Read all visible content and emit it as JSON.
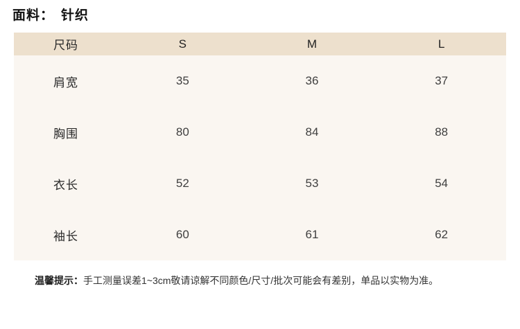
{
  "fabric": {
    "label": "面料：",
    "value": "针织"
  },
  "size_table": {
    "columns": [
      "尺码",
      "S",
      "M",
      "L"
    ],
    "rows": [
      {
        "label": "肩宽",
        "values": [
          "35",
          "36",
          "37"
        ]
      },
      {
        "label": "胸围",
        "values": [
          "80",
          "84",
          "88"
        ]
      },
      {
        "label": "衣长",
        "values": [
          "52",
          "53",
          "54"
        ]
      },
      {
        "label": "袖长",
        "values": [
          "60",
          "61",
          "62"
        ]
      }
    ]
  },
  "note": {
    "prefix": "温馨提示：",
    "text": "手工测量误差1~3cm敬请谅解不同颜色/尺寸/批次可能会有差别，单品以实物为准。"
  },
  "colors": {
    "header_bg": "#EDE0CD",
    "body_bg": "#FAF6F1",
    "note_text": "#333333"
  }
}
